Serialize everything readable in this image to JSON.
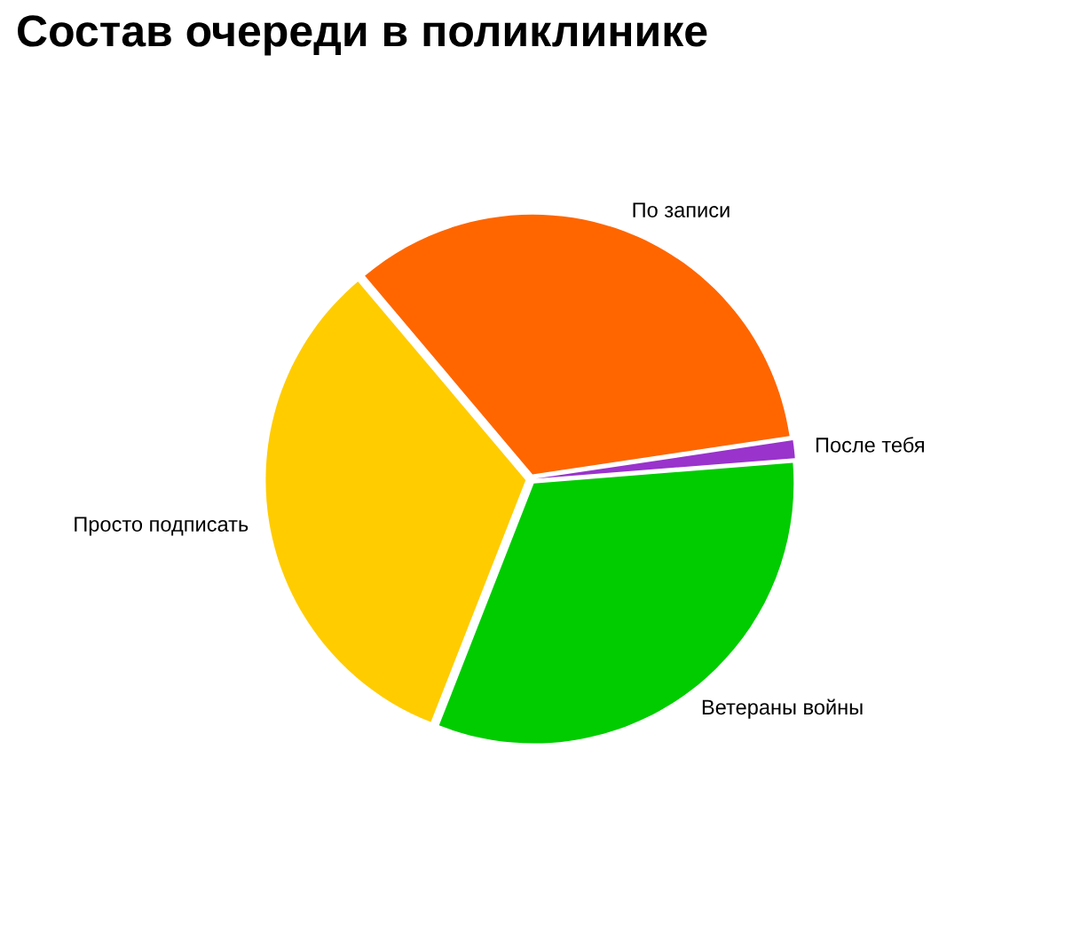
{
  "chart_data": {
    "type": "pie",
    "title": "Состав очереди в поликлинике",
    "categories": [
      "По записи",
      "Просто подписать",
      "Ветераны войны",
      "После тебя"
    ],
    "values": [
      33.8,
      32.9,
      32.2,
      1.1
    ],
    "colors": [
      "#ff6600",
      "#ffcc00",
      "#00cc00",
      "#9933cc"
    ]
  }
}
